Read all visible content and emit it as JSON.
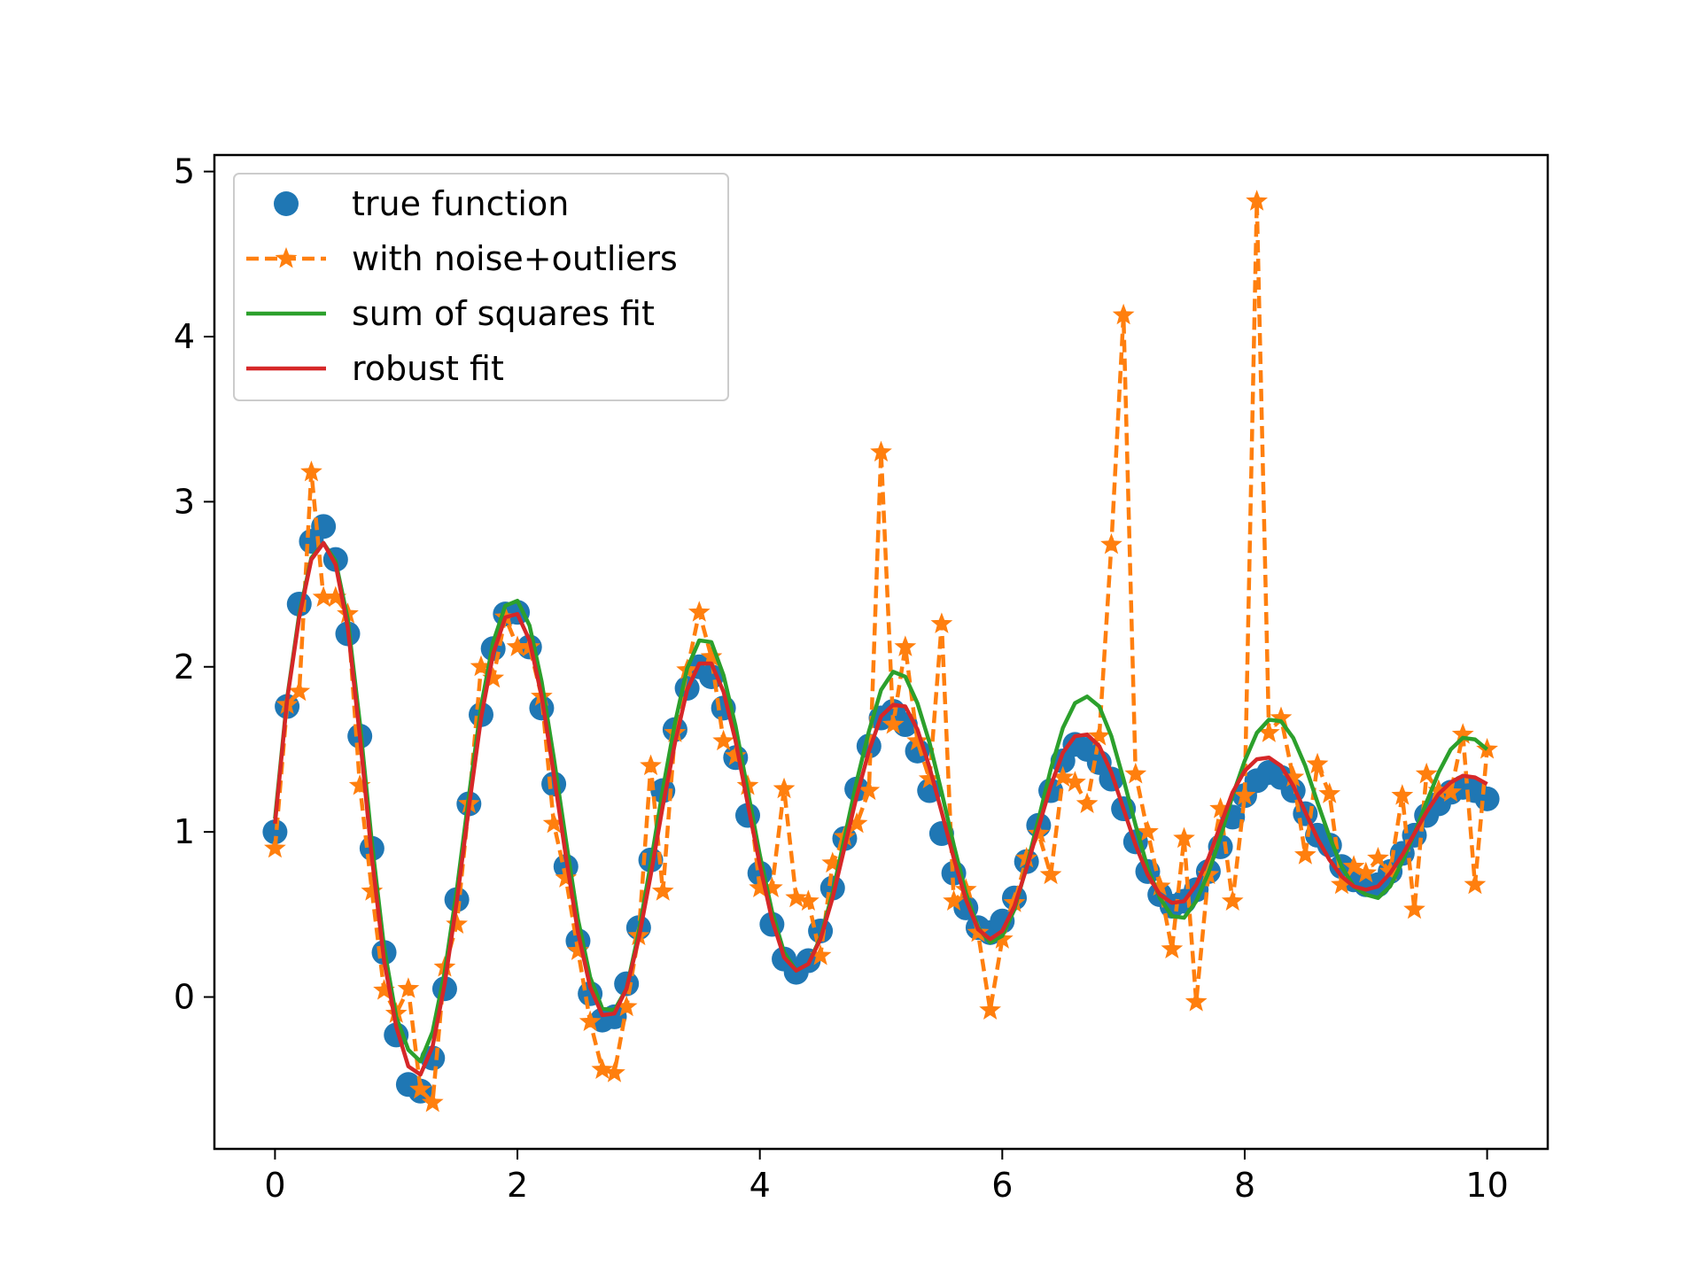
{
  "chart_data": {
    "type": "line",
    "title": "",
    "xlabel": "",
    "ylabel": "",
    "xlim": [
      -0.5,
      10.5
    ],
    "ylim": [
      -0.92,
      5.1
    ],
    "xticks": [
      0,
      2,
      4,
      6,
      8,
      10
    ],
    "yticks": [
      0,
      1,
      2,
      3,
      4,
      5
    ],
    "grid": false,
    "legend_position": "upper left",
    "x": [
      0.0,
      0.1,
      0.2,
      0.3,
      0.4,
      0.5,
      0.6,
      0.7,
      0.8,
      0.9,
      1.0,
      1.1,
      1.2,
      1.3,
      1.4,
      1.5,
      1.6,
      1.7,
      1.8,
      1.9,
      2.0,
      2.1,
      2.2,
      2.3,
      2.4,
      2.5,
      2.6,
      2.7,
      2.8,
      2.9,
      3.0,
      3.1,
      3.2,
      3.3,
      3.4,
      3.5,
      3.6,
      3.7,
      3.8,
      3.9,
      4.0,
      4.1,
      4.2,
      4.3,
      4.4,
      4.5,
      4.6,
      4.7,
      4.8,
      4.9,
      5.0,
      5.1,
      5.2,
      5.3,
      5.4,
      5.5,
      5.6,
      5.7,
      5.8,
      5.9,
      6.0,
      6.1,
      6.2,
      6.3,
      6.4,
      6.5,
      6.6,
      6.7,
      6.8,
      6.9,
      7.0,
      7.1,
      7.2,
      7.3,
      7.4,
      7.5,
      7.6,
      7.7,
      7.8,
      7.9,
      8.0,
      8.1,
      8.2,
      8.3,
      8.4,
      8.5,
      8.6,
      8.7,
      8.8,
      8.9,
      9.0,
      9.1,
      9.2,
      9.3,
      9.4,
      9.5,
      9.6,
      9.7,
      9.8,
      9.9,
      10.0
    ],
    "series": [
      {
        "name": "true function",
        "style": "markers",
        "marker": "circle",
        "color": "#1f77b4",
        "values": [
          1.0,
          1.76,
          2.38,
          2.76,
          2.85,
          2.65,
          2.2,
          1.58,
          0.9,
          0.27,
          -0.23,
          -0.53,
          -0.57,
          -0.37,
          0.05,
          0.59,
          1.17,
          1.71,
          2.11,
          2.32,
          2.33,
          2.12,
          1.75,
          1.29,
          0.79,
          0.34,
          0.02,
          -0.14,
          -0.12,
          0.08,
          0.42,
          0.83,
          1.25,
          1.62,
          1.87,
          2.0,
          1.94,
          1.75,
          1.45,
          1.1,
          0.75,
          0.44,
          0.23,
          0.15,
          0.22,
          0.4,
          0.66,
          0.96,
          1.26,
          1.52,
          1.69,
          1.73,
          1.65,
          1.49,
          1.25,
          0.99,
          0.75,
          0.54,
          0.42,
          0.39,
          0.46,
          0.6,
          0.82,
          1.04,
          1.25,
          1.43,
          1.53,
          1.5,
          1.42,
          1.32,
          1.14,
          0.94,
          0.76,
          0.62,
          0.55,
          0.58,
          0.65,
          0.76,
          0.91,
          1.09,
          1.22,
          1.31,
          1.36,
          1.33,
          1.25,
          1.11,
          0.98,
          0.92,
          0.79,
          0.71,
          0.68,
          0.68,
          0.76,
          0.87,
          0.98,
          1.1,
          1.17,
          1.24,
          1.27,
          1.25,
          1.2
        ]
      },
      {
        "name": "with noise+outliers",
        "style": "dashed-line-with-markers",
        "marker": "star",
        "color": "#ff7f0e",
        "values": [
          0.9,
          1.77,
          1.85,
          3.18,
          2.42,
          2.42,
          2.32,
          1.28,
          0.64,
          0.04,
          -0.1,
          0.05,
          -0.56,
          -0.64,
          0.18,
          0.44,
          1.17,
          2.0,
          1.93,
          2.3,
          2.12,
          2.12,
          1.82,
          1.05,
          0.72,
          0.28,
          -0.15,
          -0.44,
          -0.46,
          -0.06,
          0.37,
          1.4,
          0.64,
          1.6,
          1.98,
          2.33,
          2.06,
          1.55,
          1.46,
          1.28,
          0.66,
          0.66,
          1.26,
          0.6,
          0.58,
          0.25,
          0.81,
          0.97,
          1.05,
          1.25,
          3.3,
          1.65,
          2.12,
          1.55,
          1.32,
          2.26,
          0.58,
          0.65,
          0.39,
          -0.08,
          0.35,
          0.57,
          0.84,
          0.99,
          0.74,
          1.33,
          1.3,
          1.17,
          1.58,
          2.74,
          4.13,
          1.35,
          1.0,
          0.67,
          0.29,
          0.96,
          -0.03,
          0.74,
          1.14,
          0.58,
          1.22,
          4.82,
          1.6,
          1.69,
          1.33,
          0.86,
          1.41,
          1.23,
          0.68,
          0.79,
          0.75,
          0.84,
          0.76,
          1.22,
          0.53,
          1.35,
          1.25,
          1.24,
          1.59,
          0.68,
          1.5
        ]
      },
      {
        "name": "sum of squares fit",
        "style": "line",
        "color": "#2ca02c",
        "values": [
          1.08,
          1.81,
          2.32,
          2.66,
          2.75,
          2.64,
          2.29,
          1.66,
          0.93,
          0.3,
          -0.12,
          -0.32,
          -0.39,
          -0.21,
          0.15,
          0.65,
          1.22,
          1.76,
          2.15,
          2.37,
          2.4,
          2.25,
          1.91,
          1.45,
          0.95,
          0.47,
          0.12,
          -0.07,
          -0.08,
          0.05,
          0.39,
          0.81,
          1.26,
          1.66,
          1.99,
          2.16,
          2.15,
          1.95,
          1.64,
          1.25,
          0.86,
          0.52,
          0.27,
          0.16,
          0.2,
          0.36,
          0.63,
          0.97,
          1.31,
          1.61,
          1.86,
          1.97,
          1.94,
          1.78,
          1.54,
          1.24,
          0.92,
          0.63,
          0.42,
          0.33,
          0.37,
          0.53,
          0.79,
          1.08,
          1.38,
          1.63,
          1.78,
          1.82,
          1.76,
          1.58,
          1.32,
          1.04,
          0.78,
          0.6,
          0.49,
          0.48,
          0.58,
          0.75,
          0.97,
          1.22,
          1.43,
          1.6,
          1.68,
          1.67,
          1.57,
          1.4,
          1.18,
          0.97,
          0.79,
          0.67,
          0.62,
          0.6,
          0.67,
          0.82,
          0.99,
          1.18,
          1.36,
          1.5,
          1.57,
          1.56,
          1.5
        ]
      },
      {
        "name": "robust fit",
        "style": "line",
        "color": "#d62728",
        "values": [
          1.05,
          1.8,
          2.3,
          2.65,
          2.75,
          2.62,
          2.24,
          1.58,
          0.84,
          0.22,
          -0.18,
          -0.42,
          -0.47,
          -0.3,
          0.08,
          0.58,
          1.15,
          1.69,
          2.08,
          2.3,
          2.32,
          2.16,
          1.82,
          1.35,
          0.85,
          0.39,
          0.06,
          -0.11,
          -0.1,
          0.05,
          0.35,
          0.74,
          1.16,
          1.54,
          1.86,
          2.02,
          2.02,
          1.85,
          1.55,
          1.17,
          0.8,
          0.47,
          0.24,
          0.16,
          0.2,
          0.35,
          0.6,
          0.91,
          1.22,
          1.49,
          1.7,
          1.77,
          1.76,
          1.62,
          1.39,
          1.12,
          0.84,
          0.59,
          0.41,
          0.35,
          0.4,
          0.55,
          0.78,
          1.03,
          1.28,
          1.48,
          1.58,
          1.59,
          1.52,
          1.36,
          1.14,
          0.92,
          0.74,
          0.62,
          0.57,
          0.58,
          0.68,
          0.84,
          1.04,
          1.24,
          1.37,
          1.44,
          1.45,
          1.4,
          1.28,
          1.12,
          0.96,
          0.83,
          0.73,
          0.67,
          0.65,
          0.67,
          0.75,
          0.86,
          0.99,
          1.12,
          1.23,
          1.3,
          1.34,
          1.33,
          1.29
        ]
      }
    ]
  }
}
